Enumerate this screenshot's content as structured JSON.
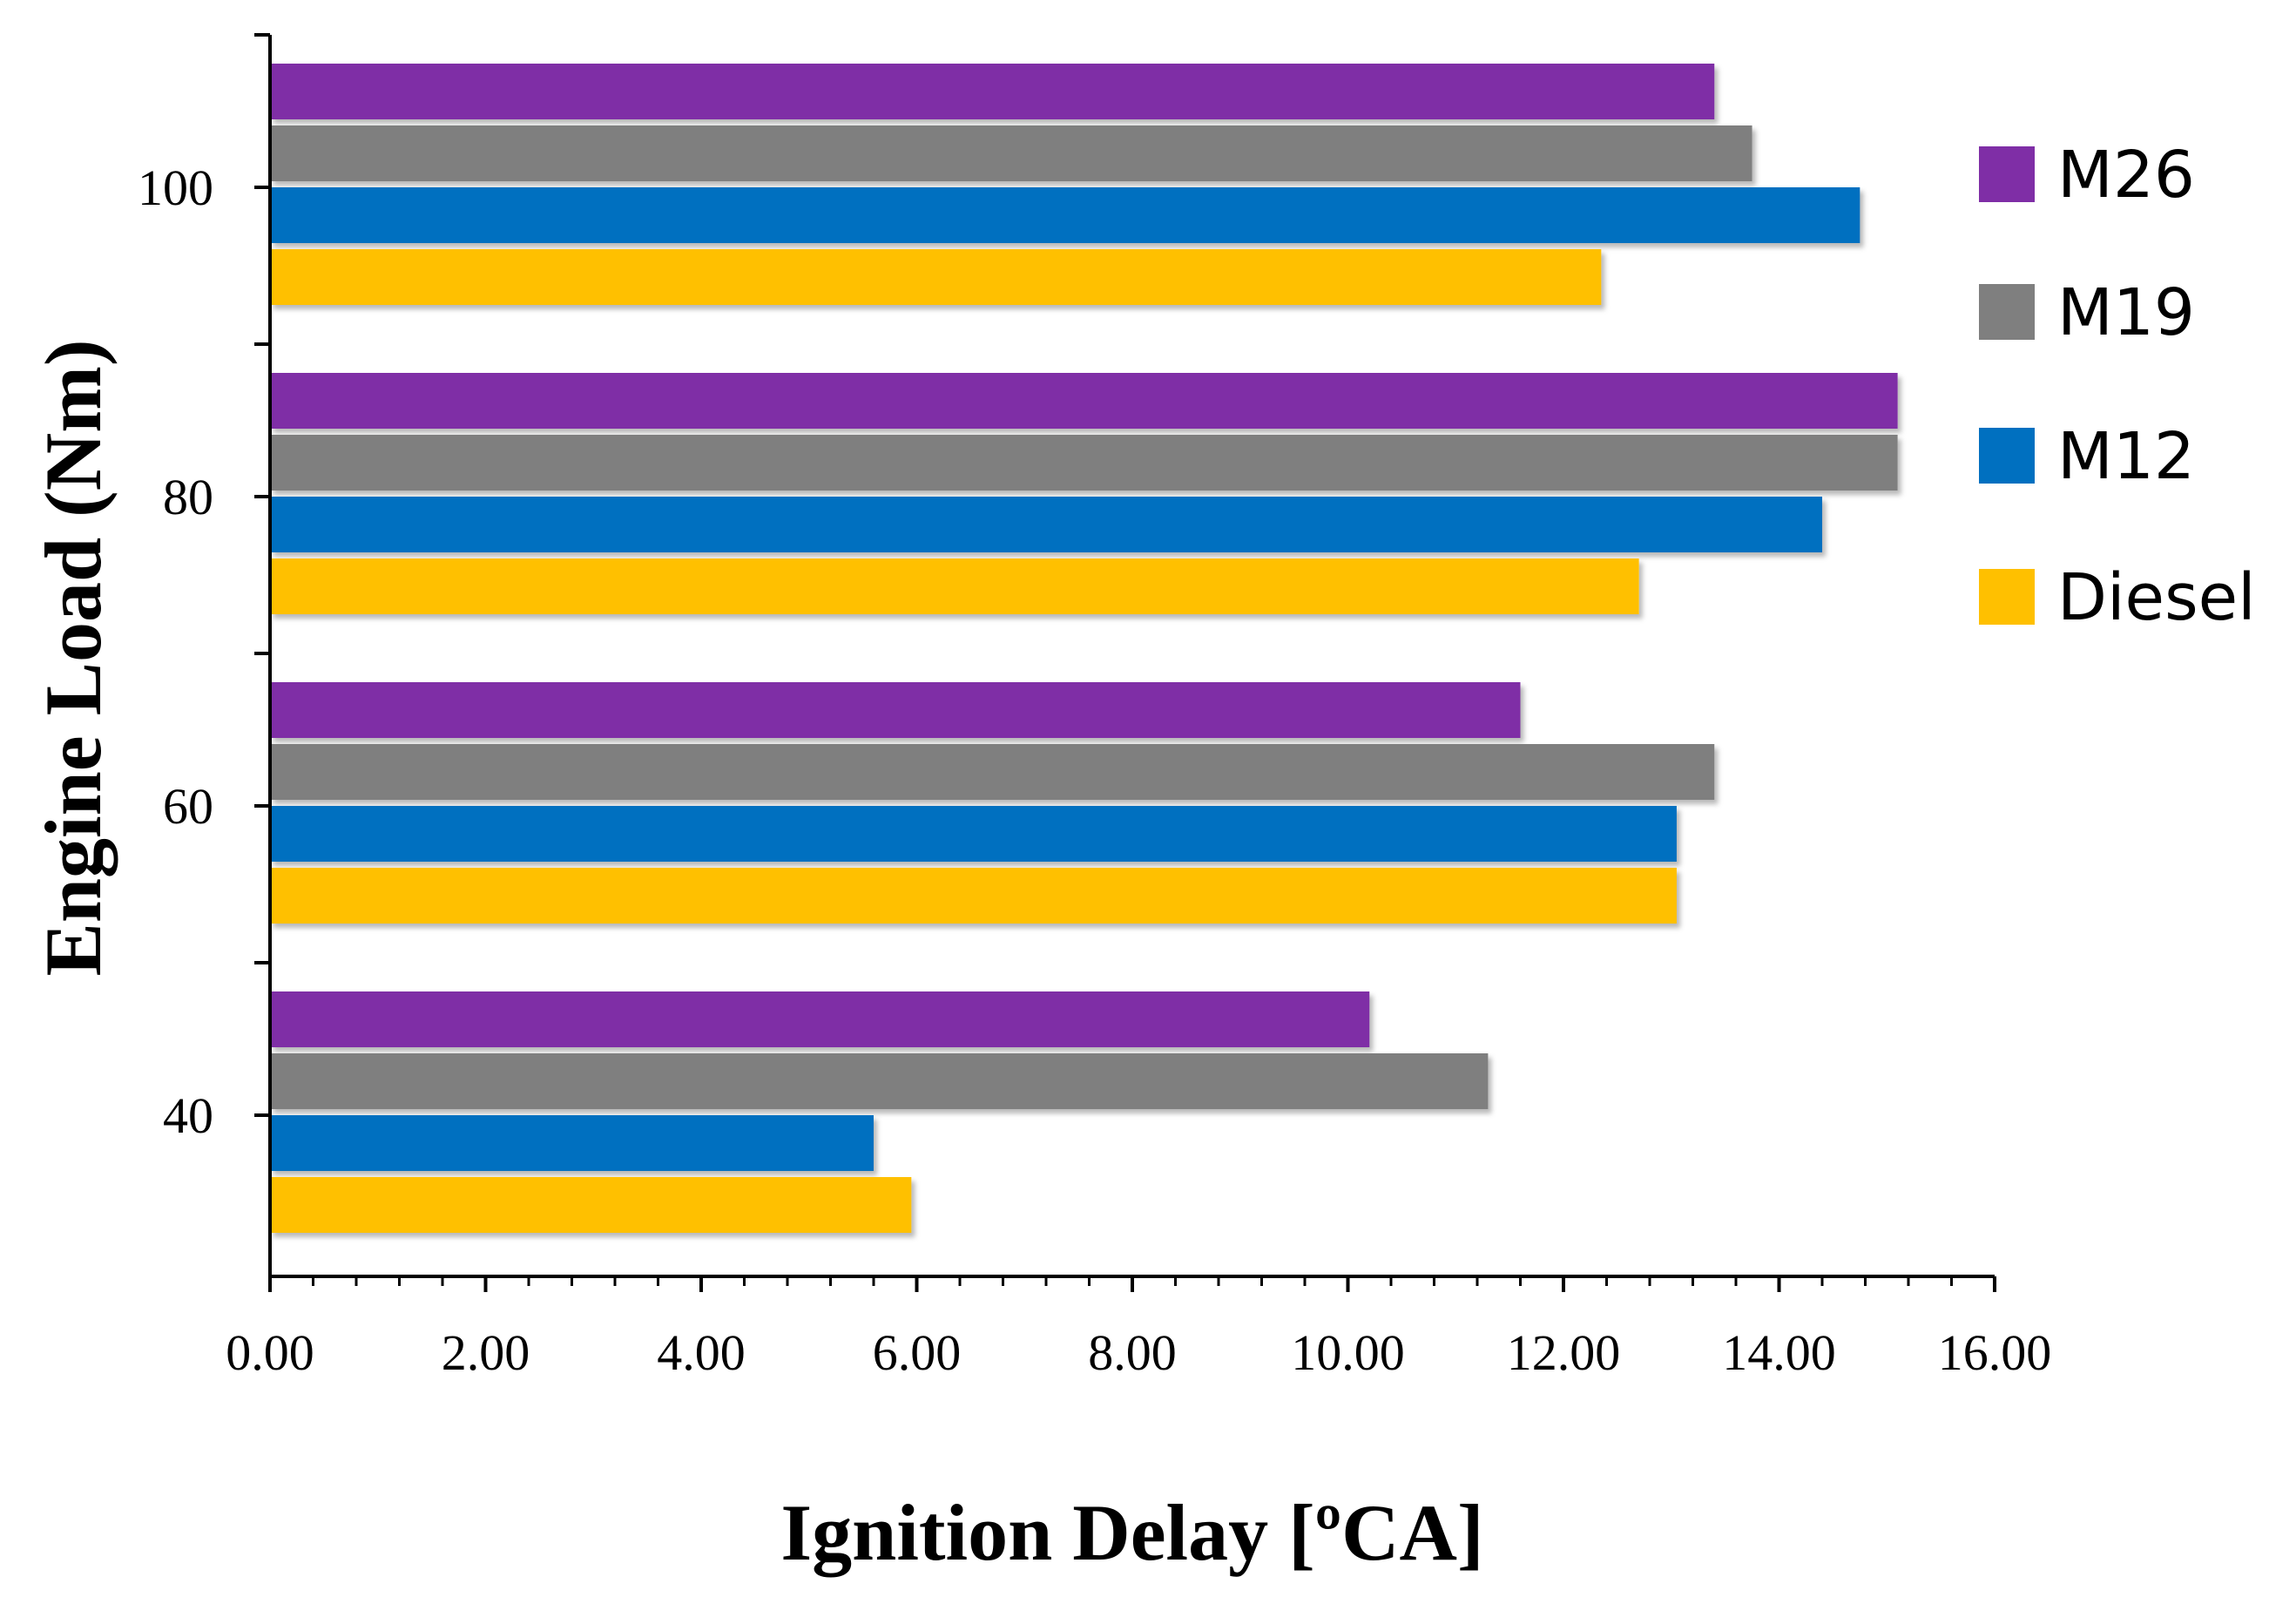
{
  "chart_data": {
    "type": "bar",
    "orientation": "horizontal",
    "title": "",
    "xlabel": "Ignition Delay [ºCA]",
    "ylabel": "Engine Load (Nm)",
    "xlim": [
      0,
      16
    ],
    "x_ticks": [
      "0.00",
      "2.00",
      "4.00",
      "6.00",
      "8.00",
      "10.00",
      "12.00",
      "14.00",
      "16.00"
    ],
    "categories": [
      "40",
      "60",
      "80",
      "100"
    ],
    "legend_position": "right",
    "grid": false,
    "series": [
      {
        "name": "M26",
        "color": "#7f2ea6",
        "values": [
          10.2,
          11.6,
          15.1,
          13.4
        ]
      },
      {
        "name": "M19",
        "color": "#7f7f7f",
        "values": [
          11.3,
          13.4,
          15.1,
          13.75
        ]
      },
      {
        "name": "M12",
        "color": "#0070c0",
        "values": [
          5.6,
          13.05,
          14.4,
          14.75
        ]
      },
      {
        "name": "Diesel",
        "color": "#ffc000",
        "values": [
          5.95,
          13.05,
          12.7,
          12.35
        ]
      }
    ]
  }
}
